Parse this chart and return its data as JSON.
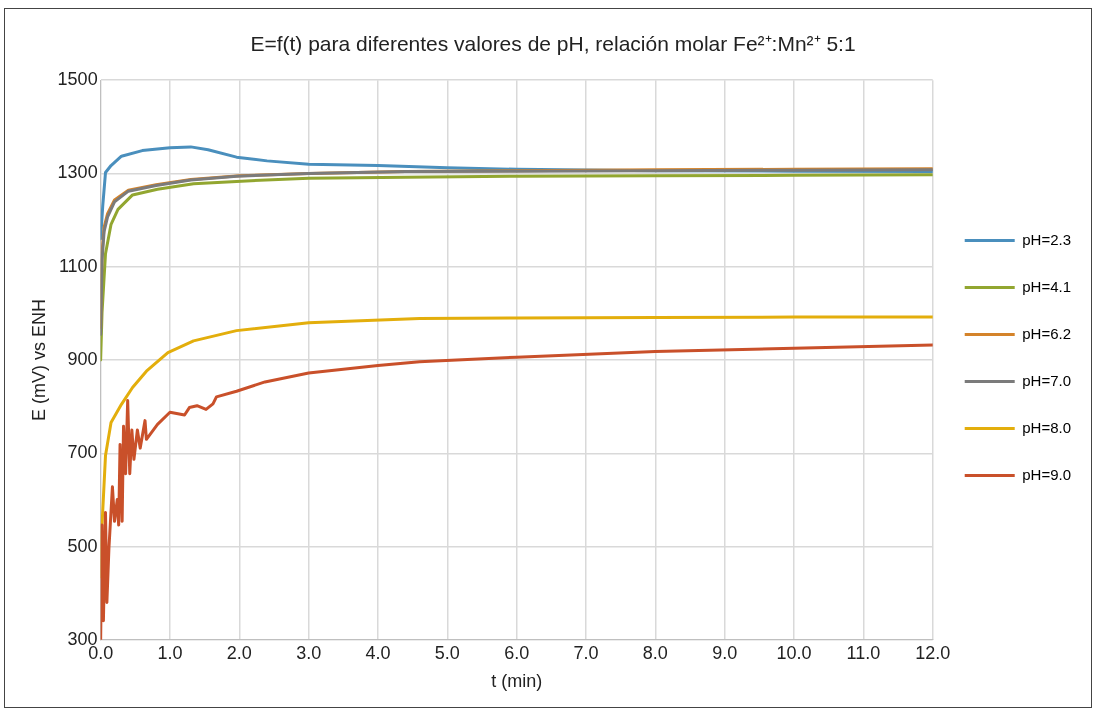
{
  "chart_data": {
    "type": "line",
    "title": "E=f(t) para diferentes valores de pH, relación molar Fe²⁺:Mn²⁺ 5:1",
    "xlabel": "t (min)",
    "ylabel": "E (mV) vs ENH",
    "xlim": [
      0,
      12
    ],
    "xticks": [
      {
        "value": 0,
        "label": "0.0"
      },
      {
        "value": 1,
        "label": "1.0"
      },
      {
        "value": 2,
        "label": "2.0"
      },
      {
        "value": 3,
        "label": "3.0"
      },
      {
        "value": 4,
        "label": "4.0"
      },
      {
        "value": 5,
        "label": "5.0"
      },
      {
        "value": 6,
        "label": "6.0"
      },
      {
        "value": 7,
        "label": "7.0"
      },
      {
        "value": 8,
        "label": "8.0"
      },
      {
        "value": 9,
        "label": "9.0"
      },
      {
        "value": 10,
        "label": "10.0"
      },
      {
        "value": 11,
        "label": "11.0"
      },
      {
        "value": 12,
        "label": "12.0"
      }
    ],
    "ylim": [
      300,
      1500
    ],
    "yticks": [
      300,
      500,
      700,
      900,
      1100,
      1300,
      1500
    ],
    "grid": true,
    "legend": "right",
    "marker": "none",
    "series": [
      {
        "name": "pH=2.3",
        "color": "#4a8fbd",
        "x": [
          0,
          0.03,
          0.07,
          0.15,
          0.3,
          0.6,
          1.0,
          1.3,
          1.55,
          1.96,
          2.4,
          3.0,
          4.0,
          5.0,
          6.0,
          8.0,
          10,
          12
        ],
        "values": [
          1160,
          1230,
          1302,
          1317,
          1337,
          1349,
          1355,
          1357,
          1351,
          1335,
          1327,
          1320,
          1317,
          1312,
          1309,
          1306,
          1305,
          1304
        ]
      },
      {
        "name": "pH=4.1",
        "color": "#92a630",
        "x": [
          0,
          0.02,
          0.07,
          0.15,
          0.25,
          0.46,
          0.82,
          1.34,
          1.96,
          3.0,
          4.4,
          6,
          8,
          10,
          12
        ],
        "values": [
          900,
          1002,
          1128,
          1191,
          1223,
          1254,
          1266,
          1278,
          1283,
          1290,
          1292,
          1294,
          1295,
          1296,
          1297
        ]
      },
      {
        "name": "pH=6.2",
        "color": "#d4832a",
        "x": [
          0,
          0.02,
          0.05,
          0.1,
          0.2,
          0.4,
          0.8,
          1.3,
          2.0,
          3.0,
          4.4,
          6,
          8,
          10,
          12
        ],
        "values": [
          970,
          1130,
          1185,
          1214,
          1243,
          1264,
          1276,
          1287,
          1295,
          1300,
          1304,
          1306,
          1308,
          1309,
          1310
        ]
      },
      {
        "name": "pH=7.0",
        "color": "#7b7b7b",
        "x": [
          0,
          0.02,
          0.05,
          0.1,
          0.2,
          0.4,
          0.8,
          1.3,
          1.96,
          3.0,
          4.4,
          6,
          8,
          10,
          12
        ],
        "values": [
          955,
          1113,
          1176,
          1207,
          1239,
          1262,
          1274,
          1286,
          1294,
          1300,
          1304,
          1305,
          1306,
          1307,
          1308
        ]
      },
      {
        "name": "pH=8.0",
        "color": "#e3ae0c",
        "x": [
          0,
          0.02,
          0.07,
          0.15,
          0.3,
          0.46,
          0.66,
          0.97,
          1.34,
          1.96,
          3.0,
          4.6,
          6,
          8,
          10,
          12
        ],
        "values": [
          435,
          546,
          695,
          766,
          805,
          841,
          876,
          916,
          941,
          963,
          980,
          989,
          990,
          991,
          992,
          992
        ]
      },
      {
        "name": "pH=9.0",
        "color": "#c9502a",
        "x": [
          0,
          0.02,
          0.04,
          0.07,
          0.09,
          0.12,
          0.17,
          0.2,
          0.24,
          0.26,
          0.28,
          0.31,
          0.33,
          0.36,
          0.39,
          0.42,
          0.45,
          0.48,
          0.53,
          0.57,
          0.64,
          0.66,
          0.82,
          1.0,
          1.21,
          1.28,
          1.39,
          1.52,
          1.62,
          1.67,
          1.96,
          2.37,
          3.0,
          4.0,
          4.6,
          6,
          8,
          10,
          12
        ],
        "values": [
          300,
          546,
          341,
          573,
          380,
          498,
          628,
          554,
          601,
          546,
          719,
          554,
          758,
          656,
          813,
          656,
          750,
          687,
          750,
          711,
          770,
          730,
          762,
          788,
          782,
          798,
          802,
          794,
          806,
          821,
          833,
          853,
          872,
          888,
          896,
          906,
          918,
          925,
          932
        ]
      }
    ]
  }
}
